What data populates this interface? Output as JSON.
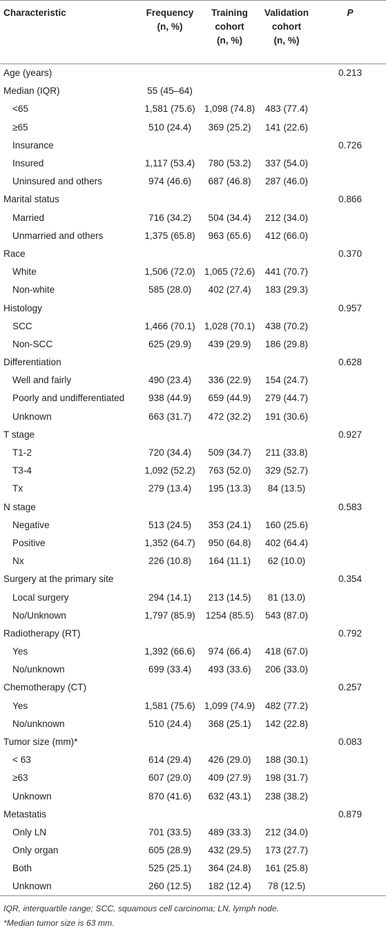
{
  "table": {
    "header": [
      [
        "Characteristic"
      ],
      [
        "Frequency",
        "(n, %)"
      ],
      [
        "Training",
        "cohort",
        "(n, %)"
      ],
      [
        "Validation",
        "cohort",
        "(n, %)"
      ],
      [
        "P"
      ]
    ],
    "rows": [
      {
        "indent": false,
        "cells": [
          "Age (years)",
          null,
          null,
          null,
          "0.213"
        ]
      },
      {
        "indent": false,
        "cells": [
          "Median (IQR)",
          "55 (45–64)",
          null,
          null,
          null
        ]
      },
      {
        "indent": true,
        "cells": [
          "<65",
          "1,581 (75.6)",
          "1,098 (74.8)",
          "483 (77.4)",
          null
        ]
      },
      {
        "indent": true,
        "cells": [
          "≥65",
          "510 (24.4)",
          "369 (25.2)",
          "141 (22.6)",
          null
        ]
      },
      {
        "indent": true,
        "cells": [
          "Insurance",
          null,
          null,
          null,
          "0.726"
        ]
      },
      {
        "indent": true,
        "cells": [
          "Insured",
          "1,117 (53.4)",
          "780 (53.2)",
          "337 (54.0)",
          null
        ]
      },
      {
        "indent": true,
        "cells": [
          "Uninsured and others",
          "974 (46.6)",
          "687 (46.8)",
          "287 (46.0)",
          null
        ]
      },
      {
        "indent": false,
        "cells": [
          "Marital status",
          null,
          null,
          null,
          "0.866"
        ]
      },
      {
        "indent": true,
        "cells": [
          "Married",
          "716 (34.2)",
          "504 (34.4)",
          "212 (34.0)",
          null
        ]
      },
      {
        "indent": true,
        "cells": [
          "Unmarried and others",
          "1,375 (65.8)",
          "963 (65.6)",
          "412 (66.0)",
          null
        ]
      },
      {
        "indent": false,
        "cells": [
          "Race",
          null,
          null,
          null,
          "0.370"
        ]
      },
      {
        "indent": true,
        "cells": [
          "White",
          "1,506 (72.0)",
          "1,065 (72.6)",
          "441 (70.7)",
          null
        ]
      },
      {
        "indent": true,
        "cells": [
          "Non-white",
          "585 (28.0)",
          "402 (27.4)",
          "183 (29.3)",
          null
        ]
      },
      {
        "indent": false,
        "cells": [
          "Histology",
          null,
          null,
          null,
          "0.957"
        ]
      },
      {
        "indent": true,
        "cells": [
          "SCC",
          "1,466 (70.1)",
          "1,028 (70.1)",
          "438 (70.2)",
          null
        ]
      },
      {
        "indent": true,
        "cells": [
          "Non-SCC",
          "625 (29.9)",
          "439 (29.9)",
          "186 (29.8)",
          null
        ]
      },
      {
        "indent": false,
        "cells": [
          "Differentiation",
          null,
          null,
          null,
          "0.628"
        ]
      },
      {
        "indent": true,
        "cells": [
          "Well and fairly",
          "490 (23.4)",
          "336 (22.9)",
          "154 (24.7)",
          null
        ]
      },
      {
        "indent": true,
        "cells": [
          "Poorly and undifferentiated",
          "938 (44.9)",
          "659 (44.9)",
          "279 (44.7)",
          null
        ]
      },
      {
        "indent": true,
        "cells": [
          "Unknown",
          "663 (31.7)",
          "472 (32.2)",
          "191 (30.6)",
          null
        ]
      },
      {
        "indent": false,
        "cells": [
          "T stage",
          null,
          null,
          null,
          "0.927"
        ]
      },
      {
        "indent": true,
        "cells": [
          "T1-2",
          "720 (34.4)",
          "509 (34.7)",
          "211 (33.8)",
          null
        ]
      },
      {
        "indent": true,
        "cells": [
          "T3-4",
          "1,092 (52.2)",
          "763 (52.0)",
          "329 (52.7)",
          null
        ]
      },
      {
        "indent": true,
        "cells": [
          "Tx",
          "279 (13.4)",
          "195 (13.3)",
          "84 (13.5)",
          null
        ]
      },
      {
        "indent": false,
        "cells": [
          "N stage",
          null,
          null,
          null,
          "0.583"
        ]
      },
      {
        "indent": true,
        "cells": [
          "Negative",
          "513 (24.5)",
          "353 (24.1)",
          "160 (25.6)",
          null
        ]
      },
      {
        "indent": true,
        "cells": [
          "Positive",
          "1,352 (64.7)",
          "950 (64.8)",
          "402 (64.4)",
          null
        ]
      },
      {
        "indent": true,
        "cells": [
          "Nx",
          "226 (10.8)",
          "164 (11.1)",
          "62 (10.0)",
          null
        ]
      },
      {
        "indent": false,
        "cells": [
          "Surgery at the primary site",
          null,
          null,
          null,
          "0.354"
        ]
      },
      {
        "indent": true,
        "cells": [
          "Local surgery",
          "294 (14.1)",
          "213 (14.5)",
          "81 (13.0)",
          null
        ]
      },
      {
        "indent": true,
        "cells": [
          "No/Unknown",
          "1,797 (85.9)",
          "1254 (85.5)",
          "543 (87.0)",
          null
        ]
      },
      {
        "indent": false,
        "cells": [
          "Radiotherapy (RT)",
          null,
          null,
          null,
          "0.792"
        ]
      },
      {
        "indent": true,
        "cells": [
          "Yes",
          "1,392 (66.6)",
          "974 (66.4)",
          "418 (67.0)",
          null
        ]
      },
      {
        "indent": true,
        "cells": [
          "No/unknown",
          "699 (33.4)",
          "493 (33.6)",
          "206 (33.0)",
          null
        ]
      },
      {
        "indent": false,
        "cells": [
          "Chemotherapy (CT)",
          null,
          null,
          null,
          "0.257"
        ]
      },
      {
        "indent": true,
        "cells": [
          "Yes",
          "1,581 (75.6)",
          "1,099 (74.9)",
          "482 (77.2)",
          null
        ]
      },
      {
        "indent": true,
        "cells": [
          "No/unknown",
          "510 (24.4)",
          "368 (25.1)",
          "142 (22.8)",
          null
        ]
      },
      {
        "indent": false,
        "cells": [
          "Tumor size (mm)*",
          null,
          null,
          null,
          "0.083"
        ]
      },
      {
        "indent": true,
        "cells": [
          "< 63",
          "614 (29.4)",
          "426 (29.0)",
          "188 (30.1)",
          null
        ]
      },
      {
        "indent": true,
        "cells": [
          "≥63",
          "607 (29.0)",
          "409 (27.9)",
          "198 (31.7)",
          null
        ]
      },
      {
        "indent": true,
        "cells": [
          "Unknown",
          "870 (41.6)",
          "632 (43.1)",
          "238 (38.2)",
          null
        ]
      },
      {
        "indent": false,
        "cells": [
          "Metastatis",
          null,
          null,
          null,
          "0.879"
        ]
      },
      {
        "indent": true,
        "cells": [
          "Only LN",
          "701 (33.5)",
          "489 (33.3)",
          "212 (34.0)",
          null
        ]
      },
      {
        "indent": true,
        "cells": [
          "Only organ",
          "605 (28.9)",
          "432 (29.5)",
          "173 (27.7)",
          null
        ]
      },
      {
        "indent": true,
        "cells": [
          "Both",
          "525 (25.1)",
          "364 (24.8)",
          "161 (25.8)",
          null
        ]
      },
      {
        "indent": true,
        "cells": [
          "Unknown",
          "260 (12.5)",
          "182 (12.4)",
          "78 (12.5)",
          null
        ]
      }
    ],
    "footnotes": [
      "IQR, interquartile range; SCC, squamous cell carcinoma; LN, lymph node.",
      "*Median tumor size is 63 mm."
    ]
  }
}
